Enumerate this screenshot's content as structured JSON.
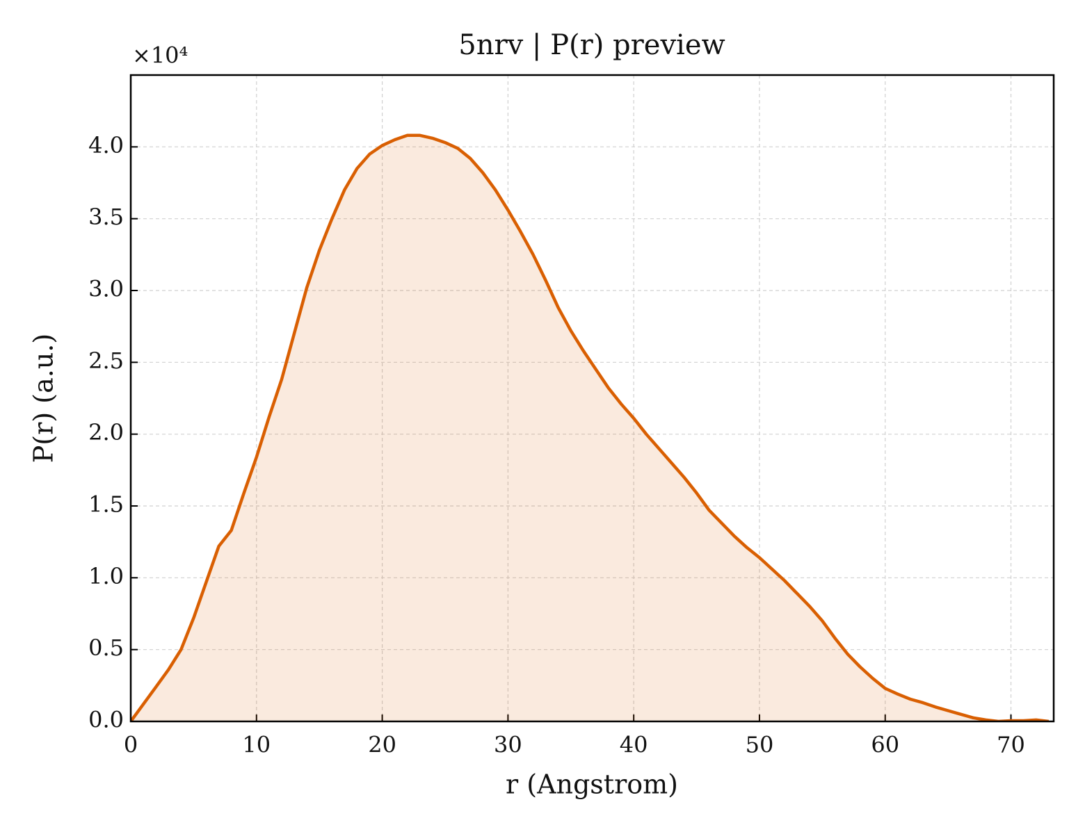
{
  "chart_data": {
    "type": "line",
    "title": "5nrv | P(r) preview",
    "xlabel": "r (Angstrom)",
    "ylabel": "P(r) (a.u.)",
    "y_offset_label": "×10⁴",
    "color": "#d95f02",
    "fill": true,
    "grid": true,
    "x": [
      0,
      1,
      2,
      3,
      4,
      5,
      6,
      7,
      8,
      9,
      10,
      11,
      12,
      13,
      14,
      15,
      16,
      17,
      18,
      19,
      20,
      21,
      22,
      23,
      24,
      25,
      26,
      27,
      28,
      29,
      30,
      31,
      32,
      33,
      34,
      35,
      36,
      37,
      38,
      39,
      40,
      41,
      42,
      43,
      44,
      45,
      46,
      47,
      48,
      49,
      50,
      51,
      52,
      53,
      54,
      55,
      56,
      57,
      58,
      59,
      60,
      61,
      62,
      63,
      64,
      65,
      66,
      67,
      68,
      69,
      70,
      71,
      72,
      73
    ],
    "values": [
      0,
      0.12,
      0.24,
      0.36,
      0.5,
      0.72,
      0.97,
      1.22,
      1.33,
      1.59,
      1.84,
      2.12,
      2.38,
      2.7,
      3.02,
      3.28,
      3.5,
      3.7,
      3.85,
      3.95,
      4.01,
      4.05,
      4.08,
      4.08,
      4.06,
      4.03,
      3.99,
      3.92,
      3.82,
      3.7,
      3.56,
      3.41,
      3.25,
      3.07,
      2.88,
      2.72,
      2.58,
      2.45,
      2.32,
      2.21,
      2.11,
      2.0,
      1.9,
      1.8,
      1.7,
      1.59,
      1.47,
      1.38,
      1.29,
      1.21,
      1.14,
      1.06,
      0.98,
      0.89,
      0.8,
      0.7,
      0.58,
      0.47,
      0.38,
      0.3,
      0.23,
      0.19,
      0.155,
      0.13,
      0.1,
      0.075,
      0.05,
      0.025,
      0.01,
      0,
      0.005,
      0.005,
      0.01,
      0
    ],
    "xlim": [
      0,
      73.4
    ],
    "ylim": [
      0,
      4.5
    ],
    "xticks": [
      0,
      10,
      20,
      30,
      40,
      50,
      60,
      70
    ],
    "yticks": [
      {
        "value": 0,
        "label": "0.0"
      },
      {
        "value": 0.5,
        "label": "0.5"
      },
      {
        "value": 1,
        "label": "1.0"
      },
      {
        "value": 1.5,
        "label": "1.5"
      },
      {
        "value": 2,
        "label": "2.0"
      },
      {
        "value": 2.5,
        "label": "2.5"
      },
      {
        "value": 3,
        "label": "3.0"
      },
      {
        "value": 3.5,
        "label": "3.5"
      },
      {
        "value": 4,
        "label": "4.0"
      }
    ]
  }
}
